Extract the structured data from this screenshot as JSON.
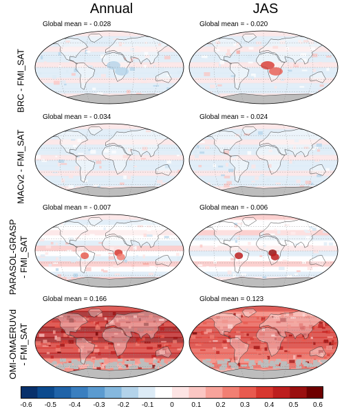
{
  "columns": [
    {
      "title": "Annual"
    },
    {
      "title": "JAS"
    }
  ],
  "rows": [
    {
      "label": "BRC - FMI_SAT",
      "annual_mean_text": "Global mean = - 0.028",
      "jas_mean_text": "Global mean = - 0.020",
      "annual_mean": -0.028,
      "jas_mean": -0.02
    },
    {
      "label": "MACv2 - FMI_SAT",
      "annual_mean_text": "Global mean = - 0.034",
      "jas_mean_text": "Global mean = - 0.024",
      "annual_mean": -0.034,
      "jas_mean": -0.024
    },
    {
      "label": "PARASOL-GRASP - FMI_SAT",
      "label_line1": "PARASOL-GRASP",
      "label_line2": "- FMI_SAT",
      "annual_mean_text": "Global mean = - 0.007",
      "jas_mean_text": "Global mean = - 0.006",
      "annual_mean": -0.007,
      "jas_mean": -0.006
    },
    {
      "label": "OMI-OMAERUVd - FMI_SAT",
      "label_line1": "OMI-OMAERUVd",
      "label_line2": "- FMI_SAT",
      "annual_mean_text": "Global mean = 0.166",
      "jas_mean_text": "Global mean = 0.123",
      "annual_mean": 0.166,
      "jas_mean": 0.123
    }
  ],
  "colorbar": {
    "ticks": [
      "-0.6",
      "-0.5",
      "-0.4",
      "-0.3",
      "-0.2",
      "-0.1",
      "0",
      "0.1",
      "0.2",
      "0.3",
      "0.4",
      "0.5",
      "0.6"
    ],
    "colors": [
      "#08306b",
      "#0b4a8e",
      "#1f63a8",
      "#3a7fc0",
      "#5b9bd0",
      "#85b8de",
      "#b3d3ea",
      "#dcebf6",
      "#ffffff",
      "#fde4e4",
      "#fbc6c3",
      "#f8a39b",
      "#f27f73",
      "#e85a4f",
      "#d7372f",
      "#bd1f1f",
      "#9a1010",
      "#6e0000"
    ]
  },
  "map_colors": {
    "land_outline": "#333333",
    "missing": "#bdbdbd",
    "ocean_base": "#f7f9fc"
  }
}
